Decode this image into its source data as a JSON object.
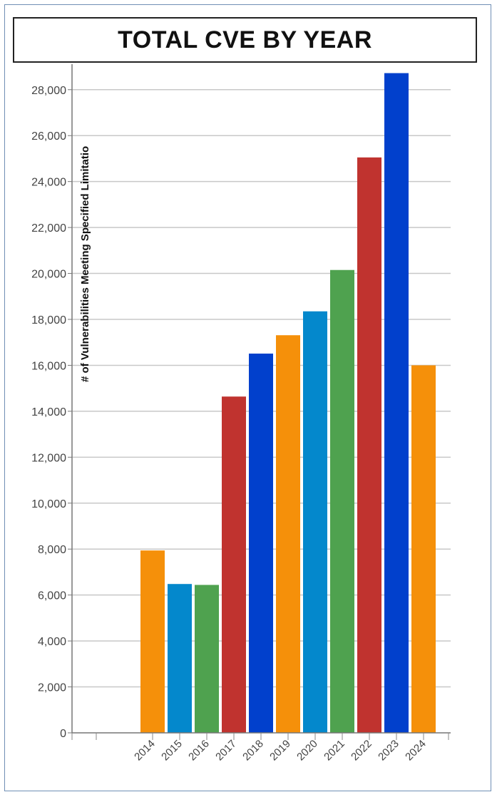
{
  "chart_data": {
    "type": "bar",
    "title": "TOTAL CVE BY YEAR",
    "ylabel": "# of Vulnerabilities Meeting Specified Limitatio",
    "xlabel": "",
    "categories": [
      "2014",
      "2015",
      "2016",
      "2017",
      "2018",
      "2019",
      "2020",
      "2021",
      "2022",
      "2023",
      "2024"
    ],
    "values": [
      7940,
      6480,
      6440,
      14640,
      16510,
      17310,
      18350,
      20150,
      25050,
      28720,
      16000
    ],
    "bar_colors": [
      "#f5900a",
      "#0488cc",
      "#4fa24f",
      "#c0332f",
      "#0140cc",
      "#f5900a",
      "#0488cc",
      "#4fa24f",
      "#c0332f",
      "#0140cc",
      "#f5900a"
    ],
    "yticks": [
      "0",
      "2,000",
      "4,000",
      "6,000",
      "8,000",
      "10,000",
      "12,000",
      "14,000",
      "16,000",
      "18,000",
      "20,000",
      "22,000",
      "24,000",
      "26,000",
      "28,000"
    ],
    "ylim": [
      0,
      28800
    ],
    "grid": true,
    "legend": "none"
  }
}
